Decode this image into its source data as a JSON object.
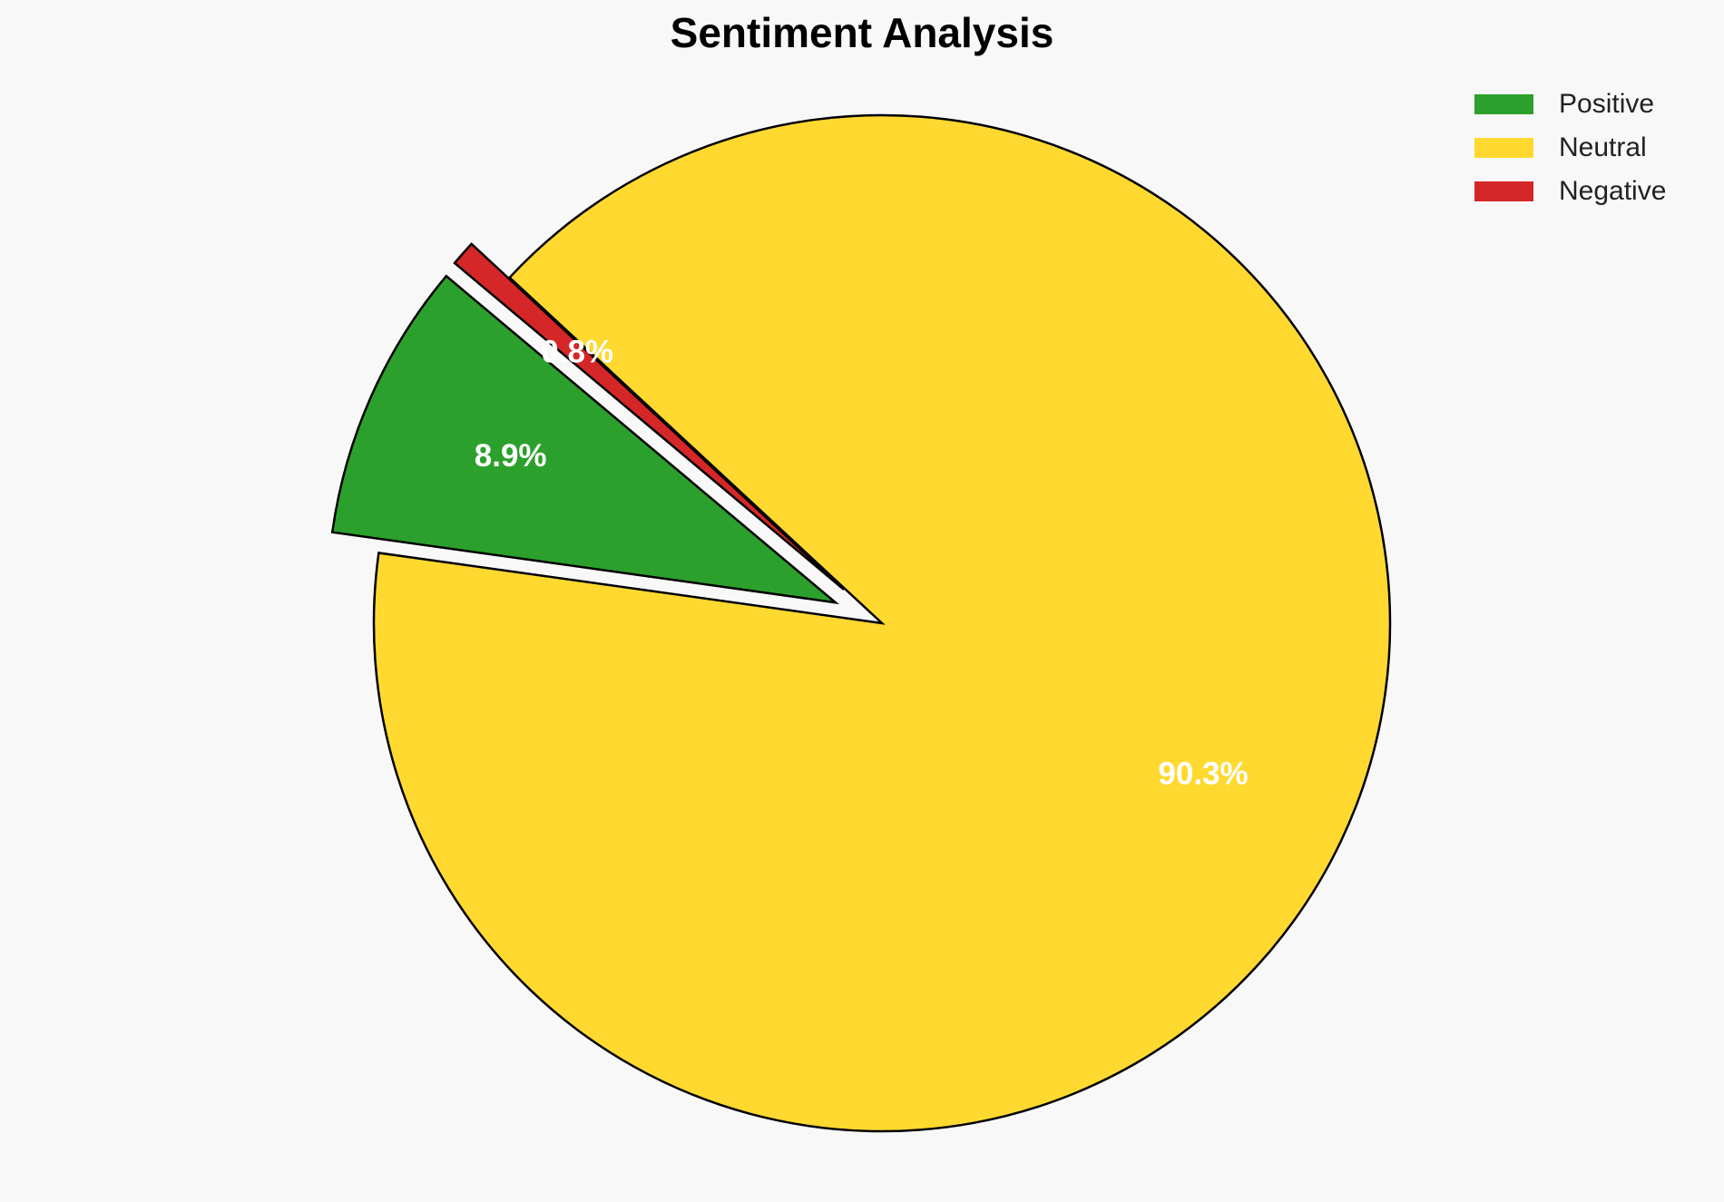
{
  "chart_data": {
    "type": "pie",
    "title": "Sentiment Analysis",
    "categories": [
      "Positive",
      "Neutral",
      "Negative"
    ],
    "values": [
      8.9,
      90.3,
      0.8
    ],
    "value_labels": [
      "8.9%",
      "90.3%",
      "0.8%"
    ],
    "colors": [
      "#2ca02c",
      "#ffd92f",
      "#d62728"
    ],
    "explode": [
      0.1,
      0,
      0.1
    ],
    "legend": "upper right"
  }
}
